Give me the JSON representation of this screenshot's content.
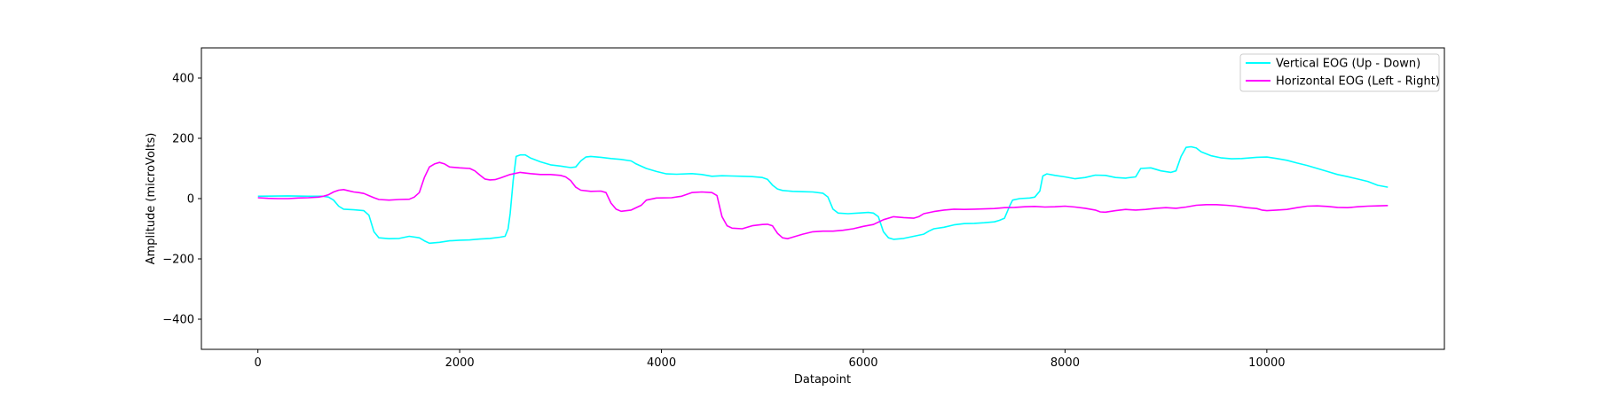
{
  "chart_data": {
    "type": "line",
    "xlabel": "Datapoint",
    "ylabel": "Amplitude (microVolts)",
    "xlim": [
      -560,
      11760
    ],
    "ylim": [
      -500,
      500
    ],
    "xticks": [
      0,
      2000,
      4000,
      6000,
      8000,
      10000
    ],
    "yticks": [
      -400,
      -200,
      0,
      200,
      400
    ],
    "xtick_labels": [
      "0",
      "2000",
      "4000",
      "6000",
      "8000",
      "10000"
    ],
    "ytick_labels": [
      "−400",
      "−200",
      "0",
      "200",
      "400"
    ],
    "grid": false,
    "legend_position": "top-right",
    "series": [
      {
        "name": "Vertical EOG (Up - Down)",
        "color": "#00ffff",
        "points": [
          [
            0,
            8
          ],
          [
            300,
            9
          ],
          [
            500,
            8
          ],
          [
            650,
            8
          ],
          [
            700,
            5
          ],
          [
            750,
            -5
          ],
          [
            800,
            -25
          ],
          [
            850,
            -35
          ],
          [
            950,
            -37
          ],
          [
            1050,
            -40
          ],
          [
            1100,
            -55
          ],
          [
            1150,
            -110
          ],
          [
            1200,
            -130
          ],
          [
            1300,
            -133
          ],
          [
            1400,
            -132
          ],
          [
            1500,
            -125
          ],
          [
            1600,
            -130
          ],
          [
            1650,
            -140
          ],
          [
            1700,
            -148
          ],
          [
            1800,
            -145
          ],
          [
            1900,
            -140
          ],
          [
            2000,
            -138
          ],
          [
            2100,
            -137
          ],
          [
            2200,
            -134
          ],
          [
            2300,
            -132
          ],
          [
            2400,
            -128
          ],
          [
            2450,
            -125
          ],
          [
            2480,
            -100
          ],
          [
            2500,
            -50
          ],
          [
            2530,
            60
          ],
          [
            2560,
            140
          ],
          [
            2600,
            145
          ],
          [
            2650,
            145
          ],
          [
            2700,
            135
          ],
          [
            2800,
            122
          ],
          [
            2900,
            112
          ],
          [
            3000,
            108
          ],
          [
            3100,
            103
          ],
          [
            3150,
            105
          ],
          [
            3200,
            125
          ],
          [
            3250,
            138
          ],
          [
            3300,
            140
          ],
          [
            3400,
            137
          ],
          [
            3500,
            133
          ],
          [
            3600,
            130
          ],
          [
            3700,
            125
          ],
          [
            3750,
            115
          ],
          [
            3850,
            100
          ],
          [
            3950,
            90
          ],
          [
            4050,
            82
          ],
          [
            4150,
            81
          ],
          [
            4300,
            83
          ],
          [
            4400,
            80
          ],
          [
            4500,
            74
          ],
          [
            4600,
            76
          ],
          [
            4700,
            75
          ],
          [
            4800,
            74
          ],
          [
            4900,
            73
          ],
          [
            5000,
            70
          ],
          [
            5050,
            64
          ],
          [
            5100,
            45
          ],
          [
            5150,
            32
          ],
          [
            5200,
            27
          ],
          [
            5300,
            24
          ],
          [
            5400,
            23
          ],
          [
            5500,
            22
          ],
          [
            5600,
            18
          ],
          [
            5650,
            5
          ],
          [
            5700,
            -35
          ],
          [
            5750,
            -48
          ],
          [
            5850,
            -50
          ],
          [
            5950,
            -48
          ],
          [
            6050,
            -46
          ],
          [
            6100,
            -48
          ],
          [
            6150,
            -60
          ],
          [
            6200,
            -110
          ],
          [
            6250,
            -130
          ],
          [
            6300,
            -135
          ],
          [
            6400,
            -132
          ],
          [
            6500,
            -125
          ],
          [
            6600,
            -118
          ],
          [
            6650,
            -108
          ],
          [
            6700,
            -100
          ],
          [
            6800,
            -95
          ],
          [
            6900,
            -87
          ],
          [
            7000,
            -83
          ],
          [
            7100,
            -82
          ],
          [
            7200,
            -80
          ],
          [
            7300,
            -77
          ],
          [
            7350,
            -72
          ],
          [
            7400,
            -65
          ],
          [
            7450,
            -25
          ],
          [
            7480,
            -5
          ],
          [
            7550,
            0
          ],
          [
            7650,
            2
          ],
          [
            7700,
            5
          ],
          [
            7750,
            25
          ],
          [
            7780,
            75
          ],
          [
            7820,
            82
          ],
          [
            7900,
            77
          ],
          [
            8000,
            72
          ],
          [
            8100,
            66
          ],
          [
            8200,
            70
          ],
          [
            8300,
            78
          ],
          [
            8400,
            77
          ],
          [
            8500,
            70
          ],
          [
            8600,
            68
          ],
          [
            8700,
            72
          ],
          [
            8750,
            100
          ],
          [
            8850,
            102
          ],
          [
            8950,
            92
          ],
          [
            9050,
            87
          ],
          [
            9100,
            92
          ],
          [
            9150,
            140
          ],
          [
            9200,
            170
          ],
          [
            9250,
            172
          ],
          [
            9300,
            168
          ],
          [
            9350,
            155
          ],
          [
            9450,
            142
          ],
          [
            9550,
            135
          ],
          [
            9650,
            132
          ],
          [
            9750,
            133
          ],
          [
            9900,
            137
          ],
          [
            10000,
            138
          ],
          [
            10100,
            133
          ],
          [
            10200,
            127
          ],
          [
            10300,
            118
          ],
          [
            10400,
            110
          ],
          [
            10500,
            100
          ],
          [
            10600,
            90
          ],
          [
            10700,
            80
          ],
          [
            10800,
            73
          ],
          [
            10900,
            65
          ],
          [
            11000,
            57
          ],
          [
            11100,
            44
          ],
          [
            11200,
            38
          ]
        ]
      },
      {
        "name": "Horizontal EOG (Left - Right)",
        "color": "#ff00ff",
        "points": [
          [
            0,
            3
          ],
          [
            100,
            1
          ],
          [
            200,
            0
          ],
          [
            300,
            0
          ],
          [
            400,
            2
          ],
          [
            500,
            3
          ],
          [
            600,
            5
          ],
          [
            650,
            8
          ],
          [
            700,
            13
          ],
          [
            750,
            22
          ],
          [
            800,
            28
          ],
          [
            850,
            30
          ],
          [
            900,
            26
          ],
          [
            950,
            22
          ],
          [
            1000,
            20
          ],
          [
            1050,
            17
          ],
          [
            1100,
            10
          ],
          [
            1150,
            3
          ],
          [
            1200,
            -3
          ],
          [
            1300,
            -5
          ],
          [
            1400,
            -3
          ],
          [
            1500,
            -2
          ],
          [
            1550,
            5
          ],
          [
            1600,
            20
          ],
          [
            1650,
            70
          ],
          [
            1700,
            105
          ],
          [
            1750,
            115
          ],
          [
            1800,
            120
          ],
          [
            1850,
            115
          ],
          [
            1900,
            105
          ],
          [
            2000,
            102
          ],
          [
            2100,
            100
          ],
          [
            2150,
            92
          ],
          [
            2200,
            78
          ],
          [
            2250,
            65
          ],
          [
            2300,
            62
          ],
          [
            2350,
            63
          ],
          [
            2400,
            68
          ],
          [
            2500,
            80
          ],
          [
            2600,
            87
          ],
          [
            2700,
            83
          ],
          [
            2800,
            80
          ],
          [
            2900,
            80
          ],
          [
            3000,
            77
          ],
          [
            3050,
            72
          ],
          [
            3100,
            60
          ],
          [
            3150,
            38
          ],
          [
            3200,
            28
          ],
          [
            3300,
            24
          ],
          [
            3400,
            25
          ],
          [
            3450,
            20
          ],
          [
            3500,
            -15
          ],
          [
            3550,
            -35
          ],
          [
            3600,
            -42
          ],
          [
            3700,
            -38
          ],
          [
            3800,
            -22
          ],
          [
            3850,
            -5
          ],
          [
            3950,
            2
          ],
          [
            4100,
            3
          ],
          [
            4200,
            8
          ],
          [
            4300,
            20
          ],
          [
            4400,
            22
          ],
          [
            4500,
            20
          ],
          [
            4550,
            10
          ],
          [
            4600,
            -60
          ],
          [
            4650,
            -90
          ],
          [
            4700,
            -98
          ],
          [
            4800,
            -100
          ],
          [
            4900,
            -90
          ],
          [
            5000,
            -86
          ],
          [
            5050,
            -85
          ],
          [
            5100,
            -90
          ],
          [
            5150,
            -115
          ],
          [
            5200,
            -130
          ],
          [
            5250,
            -133
          ],
          [
            5300,
            -128
          ],
          [
            5400,
            -118
          ],
          [
            5500,
            -110
          ],
          [
            5600,
            -108
          ],
          [
            5700,
            -108
          ],
          [
            5800,
            -105
          ],
          [
            5900,
            -100
          ],
          [
            6000,
            -92
          ],
          [
            6100,
            -86
          ],
          [
            6200,
            -70
          ],
          [
            6300,
            -60
          ],
          [
            6400,
            -63
          ],
          [
            6500,
            -65
          ],
          [
            6550,
            -60
          ],
          [
            6600,
            -50
          ],
          [
            6700,
            -43
          ],
          [
            6800,
            -38
          ],
          [
            6900,
            -35
          ],
          [
            7000,
            -36
          ],
          [
            7100,
            -35
          ],
          [
            7200,
            -34
          ],
          [
            7300,
            -33
          ],
          [
            7400,
            -30
          ],
          [
            7500,
            -29
          ],
          [
            7600,
            -27
          ],
          [
            7700,
            -26
          ],
          [
            7800,
            -28
          ],
          [
            7900,
            -27
          ],
          [
            8000,
            -25
          ],
          [
            8100,
            -28
          ],
          [
            8200,
            -32
          ],
          [
            8300,
            -38
          ],
          [
            8350,
            -44
          ],
          [
            8400,
            -45
          ],
          [
            8500,
            -40
          ],
          [
            8600,
            -36
          ],
          [
            8700,
            -38
          ],
          [
            8800,
            -36
          ],
          [
            8900,
            -32
          ],
          [
            9000,
            -30
          ],
          [
            9100,
            -32
          ],
          [
            9200,
            -28
          ],
          [
            9300,
            -22
          ],
          [
            9400,
            -20
          ],
          [
            9500,
            -20
          ],
          [
            9600,
            -22
          ],
          [
            9700,
            -25
          ],
          [
            9800,
            -30
          ],
          [
            9900,
            -33
          ],
          [
            9950,
            -38
          ],
          [
            10000,
            -40
          ],
          [
            10100,
            -38
          ],
          [
            10200,
            -36
          ],
          [
            10300,
            -30
          ],
          [
            10400,
            -25
          ],
          [
            10500,
            -24
          ],
          [
            10600,
            -26
          ],
          [
            10700,
            -29
          ],
          [
            10800,
            -30
          ],
          [
            10900,
            -27
          ],
          [
            11000,
            -25
          ],
          [
            11100,
            -24
          ],
          [
            11200,
            -23
          ]
        ]
      }
    ]
  }
}
